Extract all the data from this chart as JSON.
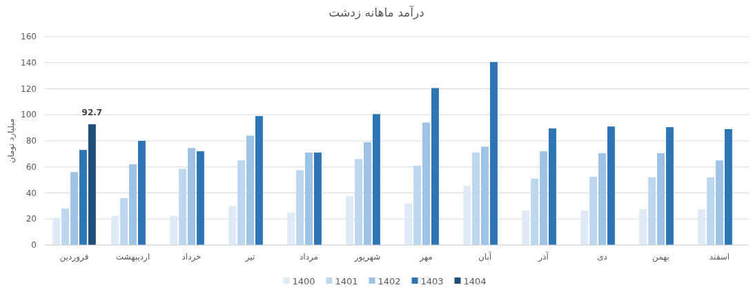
{
  "chart_data": {
    "type": "bar",
    "title": "درآمد ماهانه زدشت",
    "ylabel": "میلیارد تومان",
    "categories": [
      "فروردین",
      "اردیبهشت",
      "خرداد",
      "تیر",
      "مرداد",
      "شهریور",
      "مهر",
      "آبان",
      "آذر",
      "دی",
      "بهمن",
      "اسفند"
    ],
    "series": [
      {
        "name": "1400",
        "color": "#deebf7",
        "values": [
          21,
          22.5,
          22.5,
          30,
          25,
          37.5,
          32,
          45.5,
          26.5,
          26.5,
          27.5,
          27.5
        ]
      },
      {
        "name": "1401",
        "color": "#bdd7ee",
        "values": [
          28,
          36,
          58.5,
          65,
          57.5,
          66,
          61,
          71,
          51,
          52.5,
          52,
          52
        ]
      },
      {
        "name": "1402",
        "color": "#9dc3e6",
        "values": [
          56,
          62,
          74.5,
          84,
          71,
          79,
          94,
          75.5,
          72,
          70.5,
          70.5,
          65
        ]
      },
      {
        "name": "1403",
        "color": "#2e75b6",
        "values": [
          73,
          80,
          72,
          99,
          71,
          100.5,
          120.5,
          140.5,
          89.5,
          91,
          90.5,
          89
        ]
      },
      {
        "name": "1404",
        "color": "#1f4e79",
        "values": [
          92.7,
          null,
          null,
          null,
          null,
          null,
          null,
          null,
          null,
          null,
          null,
          null
        ],
        "value_labels": [
          "92.7",
          null,
          null,
          null,
          null,
          null,
          null,
          null,
          null,
          null,
          null,
          null
        ]
      }
    ],
    "ylim": [
      0,
      160
    ],
    "yticks": [
      0,
      20,
      40,
      60,
      80,
      100,
      120,
      140,
      160
    ],
    "grid": "y",
    "legend": "bottom"
  }
}
